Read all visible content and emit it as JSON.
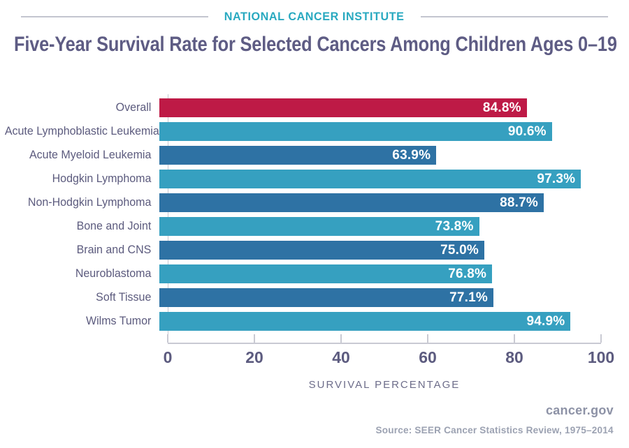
{
  "header": {
    "brand": "NATIONAL CANCER INSTITUTE",
    "title": "Five-Year Survival Rate for Selected Cancers Among Children Ages 0–19"
  },
  "chart_data": {
    "type": "bar",
    "orientation": "horizontal",
    "title": "Five-Year Survival Rate for Selected Cancers Among Children Ages 0–19",
    "xlabel": "SURVIVAL PERCENTAGE",
    "xlim": [
      0,
      100
    ],
    "xticks": [
      0,
      20,
      40,
      60,
      80,
      100
    ],
    "grid": false,
    "legend": false,
    "categories": [
      "Overall",
      "Acute Lymphoblastic Leukemia",
      "Acute Myeloid Leukemia",
      "Hodgkin Lymphoma",
      "Non-Hodgkin Lymphoma",
      "Bone and Joint",
      "Brain and CNS",
      "Neuroblastoma",
      "Soft Tissue",
      "Wilms Tumor"
    ],
    "values": [
      84.8,
      90.6,
      63.9,
      97.3,
      88.7,
      73.8,
      75.0,
      76.8,
      77.1,
      94.9
    ],
    "bars": [
      {
        "label": "Overall",
        "value": 84.8,
        "display": "84.8%",
        "color": "#be1a46"
      },
      {
        "label": "Acute Lymphoblastic Leukemia",
        "value": 90.6,
        "display": "90.6%",
        "color": "#36a0c0"
      },
      {
        "label": "Acute Myeloid Leukemia",
        "value": 63.9,
        "display": "63.9%",
        "color": "#2e72a4"
      },
      {
        "label": "Hodgkin Lymphoma",
        "value": 97.3,
        "display": "97.3%",
        "color": "#36a0c0"
      },
      {
        "label": "Non-Hodgkin Lymphoma",
        "value": 88.7,
        "display": "88.7%",
        "color": "#2e72a4"
      },
      {
        "label": "Bone and Joint",
        "value": 73.8,
        "display": "73.8%",
        "color": "#36a0c0"
      },
      {
        "label": "Brain and CNS",
        "value": 75.0,
        "display": "75.0%",
        "color": "#2e72a4"
      },
      {
        "label": "Neuroblastoma",
        "value": 76.8,
        "display": "76.8%",
        "color": "#36a0c0"
      },
      {
        "label": "Soft Tissue",
        "value": 77.1,
        "display": "77.1%",
        "color": "#2e72a4"
      },
      {
        "label": "Wilms Tumor",
        "value": 94.9,
        "display": "94.9%",
        "color": "#36a0c0"
      }
    ],
    "colors": {
      "overall": "#be1a46",
      "teal": "#36a0c0",
      "blue": "#2e72a4",
      "axis": "#c9cad3",
      "text_purple": "#5c5b7e",
      "brand_teal": "#29a9c0"
    }
  },
  "footer": {
    "site": "cancer.gov",
    "source": "Source:  SEER Cancer Statistics Review, 1975–2014"
  }
}
